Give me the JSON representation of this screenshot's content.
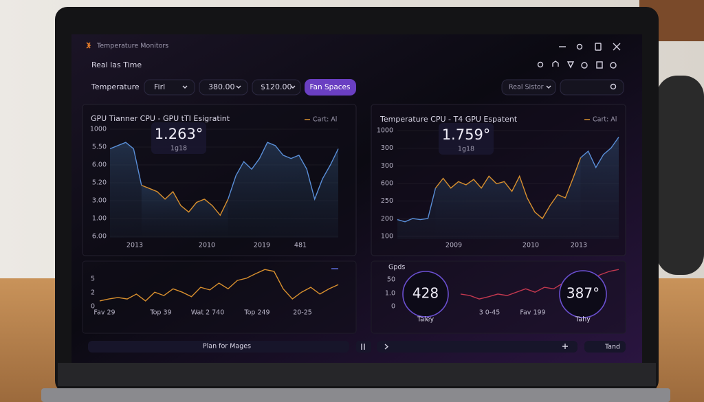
{
  "window": {
    "title": "Temperature Monitors"
  },
  "toolbar": {
    "subtitle": "Real las Time",
    "label": "Temperature",
    "filters": [
      "Firl",
      "380.00",
      "$120.00"
    ],
    "button": "Fan Spaces",
    "select": "Real Sistor"
  },
  "panels": [
    {
      "title": "GPU Tianner CPU - GPU tTI Esigratint",
      "legend": "Cart: Al",
      "big_value": "1.263°",
      "big_sub": "1g18",
      "y_labels": [
        "1000",
        "5.50",
        "6.00",
        "5.20",
        "3.00",
        "1.00",
        "6.00"
      ],
      "x_labels": [
        "2013",
        "2010",
        "2019",
        "481"
      ],
      "ylim": [
        0,
        100
      ],
      "series": [
        {
          "color": "#5a8fd8",
          "values": [
            83,
            86,
            89,
            83,
            49,
            null,
            null,
            null,
            null,
            null,
            null,
            null,
            null,
            null,
            null,
            36,
            58,
            71,
            64,
            74,
            89,
            86,
            77,
            74,
            77,
            64,
            36,
            55,
            68,
            83
          ]
        },
        {
          "color": "#d9902e",
          "values": [
            null,
            null,
            null,
            null,
            49,
            46,
            43,
            36,
            43,
            30,
            24,
            33,
            36,
            30,
            21,
            36,
            null,
            null,
            null,
            null,
            null,
            null,
            null,
            null,
            null,
            null,
            null,
            null,
            null,
            null
          ]
        }
      ]
    },
    {
      "title": "Temperature CPU - T4 GPU Espatent",
      "legend": "Cart: Al",
      "big_value": "1.759°",
      "big_sub": "1g18",
      "y_labels": [
        "1000",
        "300",
        "300",
        "600",
        "250",
        "200",
        "100"
      ],
      "x_labels": [
        "2009",
        "2010",
        "2013"
      ],
      "ylim": [
        0,
        100
      ],
      "series": [
        {
          "color": "#5a8fd8",
          "values": [
            18,
            16,
            19,
            18,
            19,
            47,
            null,
            null,
            null,
            null,
            null,
            null,
            null,
            null,
            null,
            null,
            null,
            null,
            null,
            null,
            null,
            null,
            null,
            null,
            75,
            81,
            66,
            78,
            84,
            94
          ]
        },
        {
          "color": "#d9902e",
          "values": [
            null,
            null,
            null,
            null,
            null,
            47,
            56,
            47,
            53,
            50,
            55,
            47,
            58,
            51,
            53,
            44,
            58,
            38,
            25,
            19,
            31,
            41,
            38,
            56,
            75,
            null,
            null,
            null,
            null,
            null
          ]
        }
      ]
    }
  ],
  "mini": [
    {
      "y_labels": [
        "5",
        "2",
        "0"
      ],
      "x_labels": [
        "Fav 29",
        "Top 39",
        "Wat 2 740",
        "Top 249",
        "20-25"
      ],
      "ylim": [
        0,
        100
      ],
      "color": "#d9902e",
      "values": [
        13,
        18,
        22,
        18,
        31,
        13,
        36,
        27,
        45,
        36,
        24,
        49,
        42,
        60,
        45,
        67,
        73,
        85,
        96,
        91,
        45,
        18,
        36,
        49,
        31,
        45,
        56
      ]
    },
    {
      "label": "Gpds",
      "y_labels": [
        "50",
        "1.0",
        "0"
      ],
      "x_labels": [
        "3 0-45",
        "Fav 199"
      ],
      "ylim": [
        0,
        100
      ],
      "color": "#c2384f",
      "values": [
        31,
        27,
        18,
        24,
        31,
        27,
        36,
        45,
        36,
        49,
        45,
        60,
        55,
        73,
        67,
        82,
        91,
        96
      ],
      "gauges": [
        {
          "value": "428",
          "label": "Taley"
        },
        {
          "value": "387°",
          "label": "Tahy"
        }
      ]
    }
  ],
  "footer": {
    "left": "Plan for Mages",
    "right": "Tand"
  }
}
